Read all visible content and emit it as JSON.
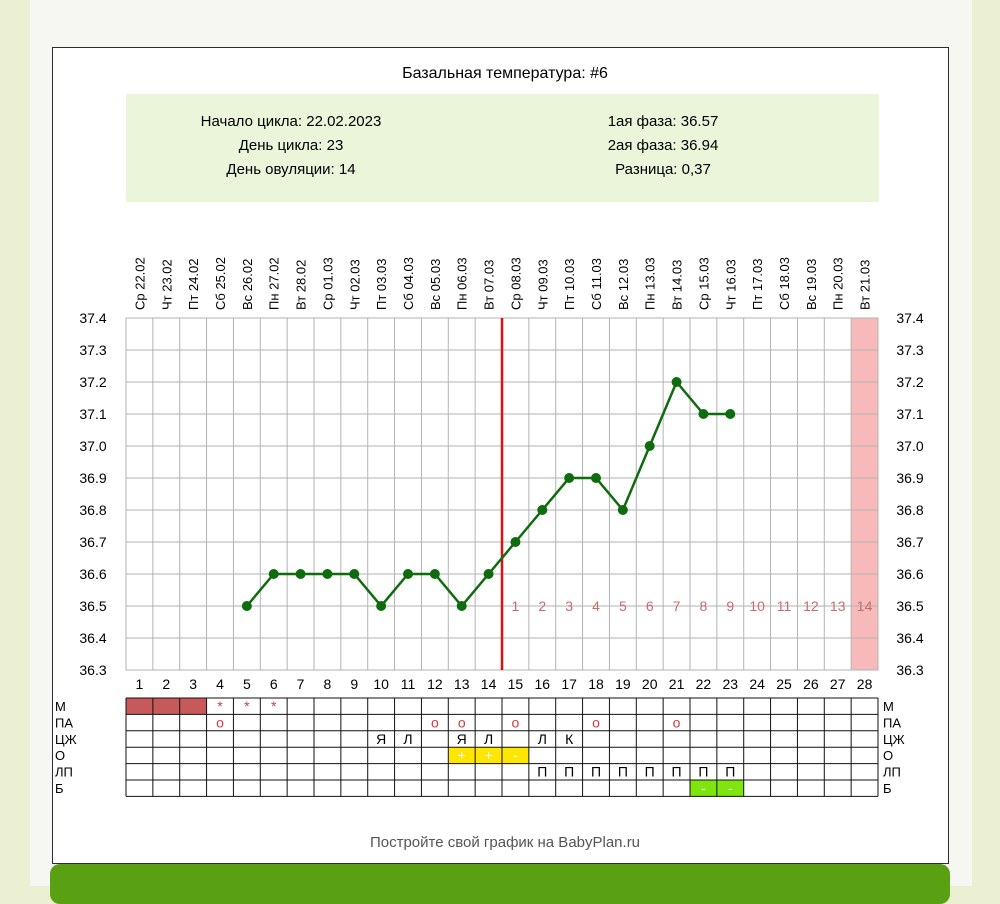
{
  "colors": {
    "page_bg": "#ebf0d2",
    "info_bg": "#ebf5d9",
    "grid": "#b3b3b3",
    "line": "#0e6b0e",
    "ovulation_line": "#dd1111",
    "day_number_text": "#c86b6b",
    "highlight_column": "#f7b9b9",
    "menstruation_fill": "#c8595b",
    "marker_text": "#d23c3c",
    "ovulation_test_fill": "#ffe600",
    "discharge_fill": "#7ee60e",
    "footer_bar": "#5aa013"
  },
  "title": "Базальная температура: #6",
  "info": {
    "cycle_start": "Начало цикла: 22.02.2023",
    "cycle_day": "День цикла: 23",
    "ovulation_day": "День овуляции: 14",
    "phase1": "1ая фаза: 36.57",
    "phase2": "2ая фаза: 36.94",
    "difference": "Разница: 0,37"
  },
  "footer": "Постройте свой график на BabyPlan.ru",
  "chart_data": {
    "type": "line",
    "title": "Базальная температура: #6",
    "dates": [
      "Ср 22.02",
      "Чт 23.02",
      "Пт 24.02",
      "Сб 25.02",
      "Вс 26.02",
      "Пн 27.02",
      "Вт 28.02",
      "Ср 01.03",
      "Чт 02.03",
      "Пт 03.03",
      "Сб 04.03",
      "Вс 05.03",
      "Пн 06.03",
      "Вт 07.03",
      "Ср 08.03",
      "Чт 09.03",
      "Пт 10.03",
      "Сб 11.03",
      "Вс 12.03",
      "Пн 13.03",
      "Вт 14.03",
      "Ср 15.03",
      "Чт 16.03",
      "Пт 17.03",
      "Сб 18.03",
      "Вс 19.03",
      "Пн 20.03",
      "Вт 21.03"
    ],
    "days": [
      "1",
      "2",
      "3",
      "4",
      "5",
      "6",
      "7",
      "8",
      "9",
      "10",
      "11",
      "12",
      "13",
      "14",
      "15",
      "16",
      "17",
      "18",
      "19",
      "20",
      "21",
      "22",
      "23",
      "24",
      "25",
      "26",
      "27",
      "28"
    ],
    "temperatures": [
      null,
      null,
      null,
      null,
      36.5,
      36.6,
      36.6,
      36.6,
      36.6,
      36.5,
      36.6,
      36.6,
      36.5,
      36.6,
      36.7,
      36.8,
      36.9,
      36.9,
      36.8,
      37.0,
      37.2,
      37.1,
      37.1,
      null,
      null,
      null,
      null,
      null
    ],
    "y_ticks": [
      "37.4",
      "37.3",
      "37.2",
      "37.1",
      "37.0",
      "36.9",
      "36.8",
      "36.7",
      "36.6",
      "36.5",
      "36.4",
      "36.3"
    ],
    "ylim": [
      36.3,
      37.4
    ],
    "ovulation_day": 14,
    "highlight_day": 28,
    "luteal_day_labels": [
      "1",
      "2",
      "3",
      "4",
      "5",
      "6",
      "7",
      "8",
      "9",
      "10",
      "11",
      "12",
      "13",
      "14"
    ],
    "grid": true
  },
  "rows": [
    {
      "label": "М",
      "cells": {
        "1": {
          "fill": "menstruation"
        },
        "2": {
          "fill": "menstruation"
        },
        "3": {
          "fill": "menstruation"
        },
        "4": {
          "text": "*"
        },
        "5": {
          "text": "*"
        },
        "6": {
          "text": "*"
        }
      }
    },
    {
      "label": "ПА",
      "cells": {
        "4": {
          "text": "о"
        },
        "12": {
          "text": "о"
        },
        "13": {
          "text": "о"
        },
        "15": {
          "text": "о"
        },
        "18": {
          "text": "о"
        },
        "21": {
          "text": "о"
        }
      }
    },
    {
      "label": "ЦЖ",
      "cells": {
        "10": {
          "text": "Я"
        },
        "11": {
          "text": "Л"
        },
        "13": {
          "text": "Я"
        },
        "14": {
          "text": "Л"
        },
        "16": {
          "text": "Л"
        },
        "17": {
          "text": "К"
        }
      }
    },
    {
      "label": "О",
      "cells": {
        "13": {
          "text": "+",
          "fill": "ovulation_test"
        },
        "14": {
          "text": "+",
          "fill": "ovulation_test"
        },
        "15": {
          "text": "-",
          "fill": "ovulation_test"
        }
      }
    },
    {
      "label": "ЛП",
      "cells": {
        "16": {
          "text": "П"
        },
        "17": {
          "text": "П"
        },
        "18": {
          "text": "П"
        },
        "19": {
          "text": "П"
        },
        "20": {
          "text": "П"
        },
        "21": {
          "text": "П"
        },
        "22": {
          "text": "П"
        },
        "23": {
          "text": "П"
        }
      }
    },
    {
      "label": "Б",
      "cells": {
        "22": {
          "text": "-",
          "fill": "discharge"
        },
        "23": {
          "text": "-",
          "fill": "discharge"
        }
      }
    }
  ]
}
